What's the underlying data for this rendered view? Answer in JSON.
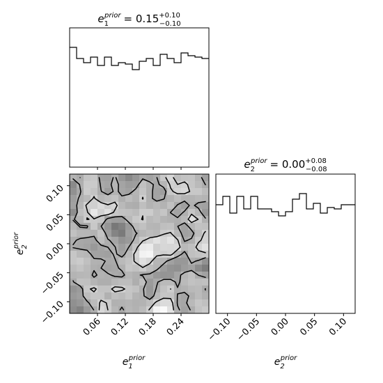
{
  "chart_data": [
    {
      "panel": "marginal-e1",
      "type": "histogram",
      "title": {
        "symbol": "e",
        "sub": "1",
        "sup": "prior",
        "equals": "= 0.15",
        "plus": "+0.10",
        "minus": "−0.10"
      },
      "xlim": [
        0.0,
        0.3
      ],
      "bins": 20,
      "ylim": [
        0,
        1.0
      ],
      "values": [
        0.86,
        0.78,
        0.75,
        0.79,
        0.73,
        0.79,
        0.73,
        0.75,
        0.74,
        0.7,
        0.76,
        0.78,
        0.73,
        0.81,
        0.78,
        0.75,
        0.82,
        0.8,
        0.79,
        0.78
      ],
      "xticks": [
        0.06,
        0.12,
        0.18,
        0.24
      ]
    },
    {
      "panel": "joint-e1-e2",
      "type": "heatmap",
      "xlim": [
        0.0,
        0.3
      ],
      "ylim": [
        -0.12,
        0.12
      ],
      "xticks": [
        0.06,
        0.12,
        0.18,
        0.24
      ],
      "xtick_labels": [
        "0.06",
        "0.12",
        "0.18",
        "0.24"
      ],
      "yticks": [
        -0.1,
        -0.05,
        0.0,
        0.05,
        0.1
      ],
      "ytick_labels": [
        "−0.10",
        "−0.05",
        "0.00",
        "0.05",
        "0.10"
      ],
      "xlabel": {
        "symbol": "e",
        "sub": "1",
        "sup": "prior"
      },
      "ylabel": {
        "symbol": "e",
        "sub": "2",
        "sup": "prior"
      },
      "grid": [
        20,
        20
      ],
      "contour_levels": [
        0.35,
        0.6
      ],
      "seed": 7
    },
    {
      "panel": "marginal-e2",
      "type": "histogram",
      "title": {
        "symbol": "e",
        "sub": "2",
        "sup": "prior",
        "equals": "= 0.00",
        "plus": "+0.08",
        "minus": "−0.08"
      },
      "xlim": [
        -0.12,
        0.12
      ],
      "bins": 20,
      "ylim": [
        0,
        1.0
      ],
      "values": [
        0.78,
        0.84,
        0.72,
        0.84,
        0.75,
        0.84,
        0.75,
        0.75,
        0.73,
        0.7,
        0.73,
        0.82,
        0.86,
        0.75,
        0.79,
        0.72,
        0.76,
        0.75,
        0.78,
        0.78
      ],
      "xticks": [
        -0.1,
        -0.05,
        0.0,
        0.05,
        0.1
      ],
      "xtick_labels": [
        "−0.10",
        "−0.05",
        "0.00",
        "0.05",
        "0.10"
      ],
      "xlabel": {
        "symbol": "e",
        "sub": "2",
        "sup": "prior"
      }
    }
  ]
}
